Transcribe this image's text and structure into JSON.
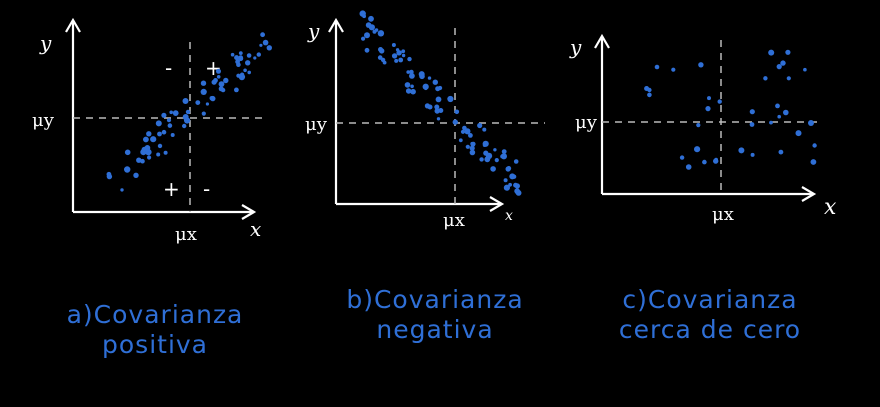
{
  "colors": {
    "background": "#000000",
    "axes": "#ffffff",
    "points": "#2f6fd6",
    "captions": "#2f6fd6"
  },
  "panels": [
    {
      "id": "a",
      "y_label": "y",
      "x_label": "x",
      "mu_y": "μy",
      "mu_x": "μx",
      "quadrant_signs": [
        "-",
        "+",
        "+",
        "-"
      ],
      "caption_line1": "a)Covarianza",
      "caption_line2": "positiva"
    },
    {
      "id": "b",
      "y_label": "y",
      "x_label": "x",
      "mu_y": "μy",
      "mu_x": "μx",
      "caption_line1": "b)Covarianza",
      "caption_line2": "negativa"
    },
    {
      "id": "c",
      "y_label": "y",
      "x_label": "x",
      "mu_y": "μy",
      "mu_x": "μx",
      "caption_line1": "c)Covarianza",
      "caption_line2": "cerca de cero"
    }
  ]
}
